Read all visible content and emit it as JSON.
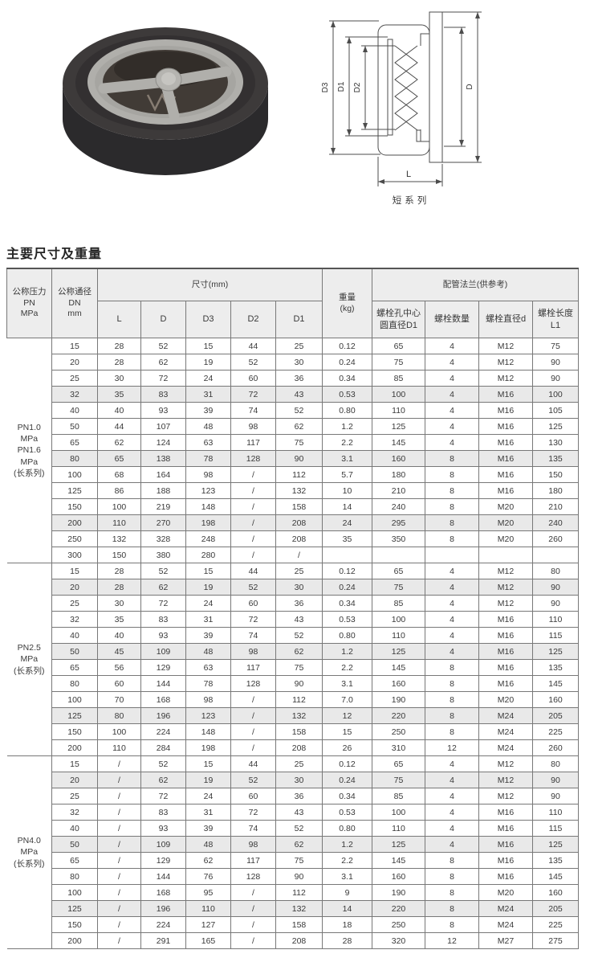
{
  "title": "主要尺寸及重量",
  "drawing": {
    "caption": "短系列",
    "labels": {
      "d3": "D3",
      "d1": "D1",
      "d2": "D2",
      "d": "D",
      "l": "L"
    }
  },
  "table": {
    "headers": {
      "pressure": "公称压力\nPN\nMPa",
      "dn": "公称通径\nDN\nmm",
      "size_group": "尺寸(mm)",
      "size_cols": [
        "L",
        "D",
        "D3",
        "D2",
        "D1"
      ],
      "weight": "重量\n(kg)",
      "flange_group": "配管法兰(供参考)",
      "flange_cols": [
        "螺栓孔中心\n圆直径D1",
        "螺栓数量",
        "螺栓直径d",
        "螺栓长度L1"
      ]
    },
    "groups": [
      {
        "label": "PN1.0\nMPa\nPN1.6\nMPa\n(长系列)",
        "rows": [
          [
            "15",
            "28",
            "52",
            "15",
            "44",
            "25",
            "0.12",
            "65",
            "4",
            "M12",
            "75"
          ],
          [
            "20",
            "28",
            "62",
            "19",
            "52",
            "30",
            "0.24",
            "75",
            "4",
            "M12",
            "90"
          ],
          [
            "25",
            "30",
            "72",
            "24",
            "60",
            "36",
            "0.34",
            "85",
            "4",
            "M12",
            "90"
          ],
          [
            "32",
            "35",
            "83",
            "31",
            "72",
            "43",
            "0.53",
            "100",
            "4",
            "M16",
            "100"
          ],
          [
            "40",
            "40",
            "93",
            "39",
            "74",
            "52",
            "0.80",
            "110",
            "4",
            "M16",
            "105"
          ],
          [
            "50",
            "44",
            "107",
            "48",
            "98",
            "62",
            "1.2",
            "125",
            "4",
            "M16",
            "125"
          ],
          [
            "65",
            "62",
            "124",
            "63",
            "117",
            "75",
            "2.2",
            "145",
            "4",
            "M16",
            "130"
          ],
          [
            "80",
            "65",
            "138",
            "78",
            "128",
            "90",
            "3.1",
            "160",
            "8",
            "M16",
            "135"
          ],
          [
            "100",
            "68",
            "164",
            "98",
            "/",
            "112",
            "5.7",
            "180",
            "8",
            "M16",
            "150"
          ],
          [
            "125",
            "86",
            "188",
            "123",
            "/",
            "132",
            "10",
            "210",
            "8",
            "M16",
            "180"
          ],
          [
            "150",
            "100",
            "219",
            "148",
            "/",
            "158",
            "14",
            "240",
            "8",
            "M20",
            "210"
          ],
          [
            "200",
            "110",
            "270",
            "198",
            "/",
            "208",
            "24",
            "295",
            "8",
            "M20",
            "240"
          ],
          [
            "250",
            "132",
            "328",
            "248",
            "/",
            "208",
            "35",
            "350",
            "8",
            "M20",
            "260"
          ],
          [
            "300",
            "150",
            "380",
            "280",
            "/",
            "/",
            "",
            "",
            "",
            "",
            ""
          ]
        ]
      },
      {
        "label": "PN2.5\nMPa\n(长系列)",
        "rows": [
          [
            "15",
            "28",
            "52",
            "15",
            "44",
            "25",
            "0.12",
            "65",
            "4",
            "M12",
            "80"
          ],
          [
            "20",
            "28",
            "62",
            "19",
            "52",
            "30",
            "0.24",
            "75",
            "4",
            "M12",
            "90"
          ],
          [
            "25",
            "30",
            "72",
            "24",
            "60",
            "36",
            "0.34",
            "85",
            "4",
            "M12",
            "90"
          ],
          [
            "32",
            "35",
            "83",
            "31",
            "72",
            "43",
            "0.53",
            "100",
            "4",
            "M16",
            "110"
          ],
          [
            "40",
            "40",
            "93",
            "39",
            "74",
            "52",
            "0.80",
            "110",
            "4",
            "M16",
            "115"
          ],
          [
            "50",
            "45",
            "109",
            "48",
            "98",
            "62",
            "1.2",
            "125",
            "4",
            "M16",
            "125"
          ],
          [
            "65",
            "56",
            "129",
            "63",
            "117",
            "75",
            "2.2",
            "145",
            "8",
            "M16",
            "135"
          ],
          [
            "80",
            "60",
            "144",
            "78",
            "128",
            "90",
            "3.1",
            "160",
            "8",
            "M16",
            "145"
          ],
          [
            "100",
            "70",
            "168",
            "98",
            "/",
            "112",
            "7.0",
            "190",
            "8",
            "M20",
            "160"
          ],
          [
            "125",
            "80",
            "196",
            "123",
            "/",
            "132",
            "12",
            "220",
            "8",
            "M24",
            "205"
          ],
          [
            "150",
            "100",
            "224",
            "148",
            "/",
            "158",
            "15",
            "250",
            "8",
            "M24",
            "225"
          ],
          [
            "200",
            "110",
            "284",
            "198",
            "/",
            "208",
            "26",
            "310",
            "12",
            "M24",
            "260"
          ]
        ]
      },
      {
        "label": "PN4.0\nMPa\n(长系列)",
        "rows": [
          [
            "15",
            "/",
            "52",
            "15",
            "44",
            "25",
            "0.12",
            "65",
            "4",
            "M12",
            "80"
          ],
          [
            "20",
            "/",
            "62",
            "19",
            "52",
            "30",
            "0.24",
            "75",
            "4",
            "M12",
            "90"
          ],
          [
            "25",
            "/",
            "72",
            "24",
            "60",
            "36",
            "0.34",
            "85",
            "4",
            "M12",
            "90"
          ],
          [
            "32",
            "/",
            "83",
            "31",
            "72",
            "43",
            "0.53",
            "100",
            "4",
            "M16",
            "110"
          ],
          [
            "40",
            "/",
            "93",
            "39",
            "74",
            "52",
            "0.80",
            "110",
            "4",
            "M16",
            "115"
          ],
          [
            "50",
            "/",
            "109",
            "48",
            "98",
            "62",
            "1.2",
            "125",
            "4",
            "M16",
            "125"
          ],
          [
            "65",
            "/",
            "129",
            "62",
            "117",
            "75",
            "2.2",
            "145",
            "8",
            "M16",
            "135"
          ],
          [
            "80",
            "/",
            "144",
            "76",
            "128",
            "90",
            "3.1",
            "160",
            "8",
            "M16",
            "145"
          ],
          [
            "100",
            "/",
            "168",
            "95",
            "/",
            "112",
            "9",
            "190",
            "8",
            "M20",
            "160"
          ],
          [
            "125",
            "/",
            "196",
            "110",
            "/",
            "132",
            "14",
            "220",
            "8",
            "M24",
            "205"
          ],
          [
            "150",
            "/",
            "224",
            "127",
            "/",
            "158",
            "18",
            "250",
            "8",
            "M24",
            "225"
          ],
          [
            "200",
            "/",
            "291",
            "165",
            "/",
            "208",
            "28",
            "320",
            "12",
            "M27",
            "275"
          ]
        ]
      }
    ]
  },
  "colors": {
    "header_bg": "#ededed",
    "shaded_row_bg": "#e9e9e9",
    "grid_line": "#787878",
    "text": "#3a3a3a",
    "valve_rubber_dark": "#2b2a2c",
    "valve_metal_silver": "#b0afab"
  }
}
